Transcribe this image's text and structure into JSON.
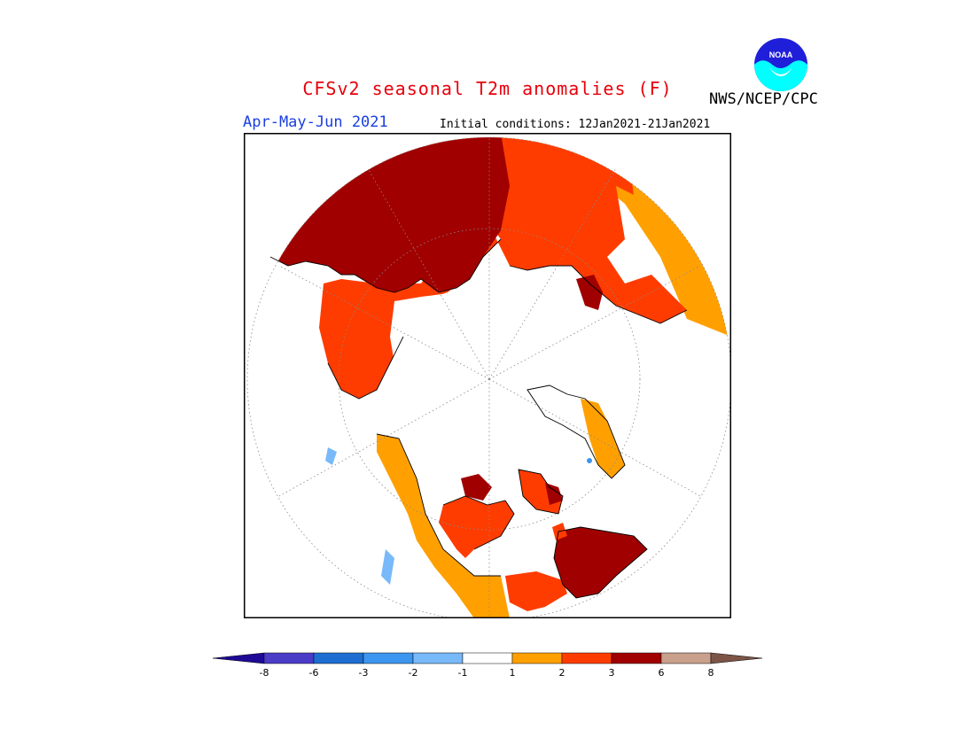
{
  "header": {
    "title": "CFSv2 seasonal T2m anomalies (F)",
    "agency": "NWS/NCEP/CPC",
    "logo_text": "NOAA",
    "period": "Apr-May-Jun 2021",
    "initial_conditions": "Initial conditions: 12Jan2021-21Jan2021"
  },
  "legend": {
    "units": "F",
    "ticks": [
      "-8",
      "-6",
      "-3",
      "-2",
      "-1",
      "1",
      "2",
      "3",
      "6",
      "8"
    ],
    "bins": [
      {
        "range": "< -8",
        "color": "#1e0a96"
      },
      {
        "range": "-8 to -6",
        "color": "#4b3cc8"
      },
      {
        "range": "-6 to -3",
        "color": "#1e6ed2"
      },
      {
        "range": "-3 to -2",
        "color": "#3c96f0"
      },
      {
        "range": "-2 to -1",
        "color": "#78b9fa"
      },
      {
        "range": "-1 to 1",
        "color": "#ffffff"
      },
      {
        "range": "1 to 2",
        "color": "#ffa000"
      },
      {
        "range": "2 to 3",
        "color": "#ff3c00"
      },
      {
        "range": "3 to 6",
        "color": "#a00000"
      },
      {
        "range": "6 to 8",
        "color": "#c8a08c"
      },
      {
        "range": "> 8",
        "color": "#7d5546"
      }
    ]
  },
  "map": {
    "projection": "polar stereographic (north pole)",
    "colors": {
      "warm_1_2": "#ffa000",
      "warm_2_3": "#ff3c00",
      "warm_3_6": "#a00000",
      "cool_1_2": "#78b9fa",
      "neutral": "#ffffff"
    }
  }
}
